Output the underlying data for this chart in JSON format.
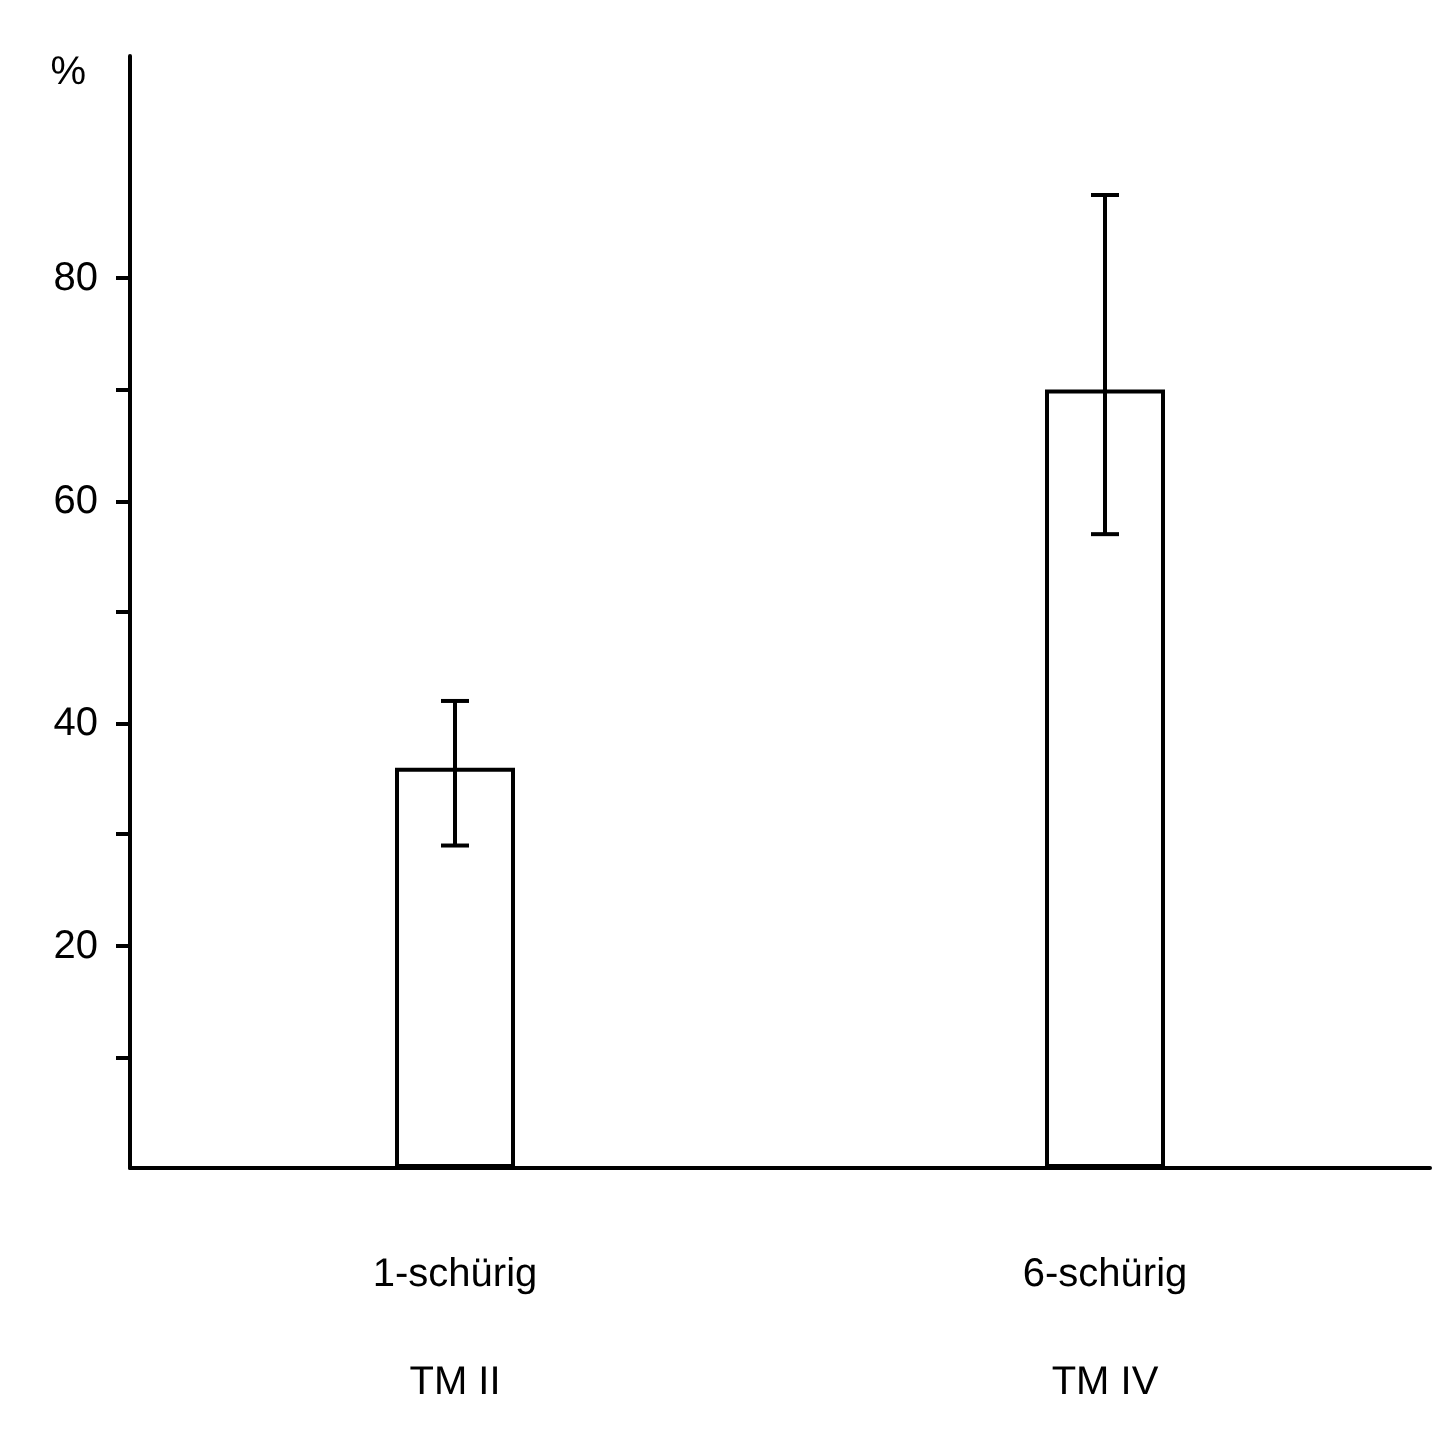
{
  "chart_data": {
    "type": "bar",
    "ylabel": "%",
    "categories": [
      "1-schürig\nTM II",
      "6-schürig\nTM IV"
    ],
    "values": [
      36,
      70
    ],
    "errors": [
      [
        29,
        42
      ],
      [
        57,
        87.5
      ]
    ],
    "color": "#ffffff",
    "ylim": [
      0,
      100
    ],
    "yticks": [
      {
        "value": 10,
        "label": null
      },
      20,
      {
        "value": 30,
        "label": null
      },
      40,
      {
        "value": 50,
        "label": null
      },
      60,
      {
        "value": 70,
        "label": null
      },
      80
    ],
    "grid": false
  }
}
